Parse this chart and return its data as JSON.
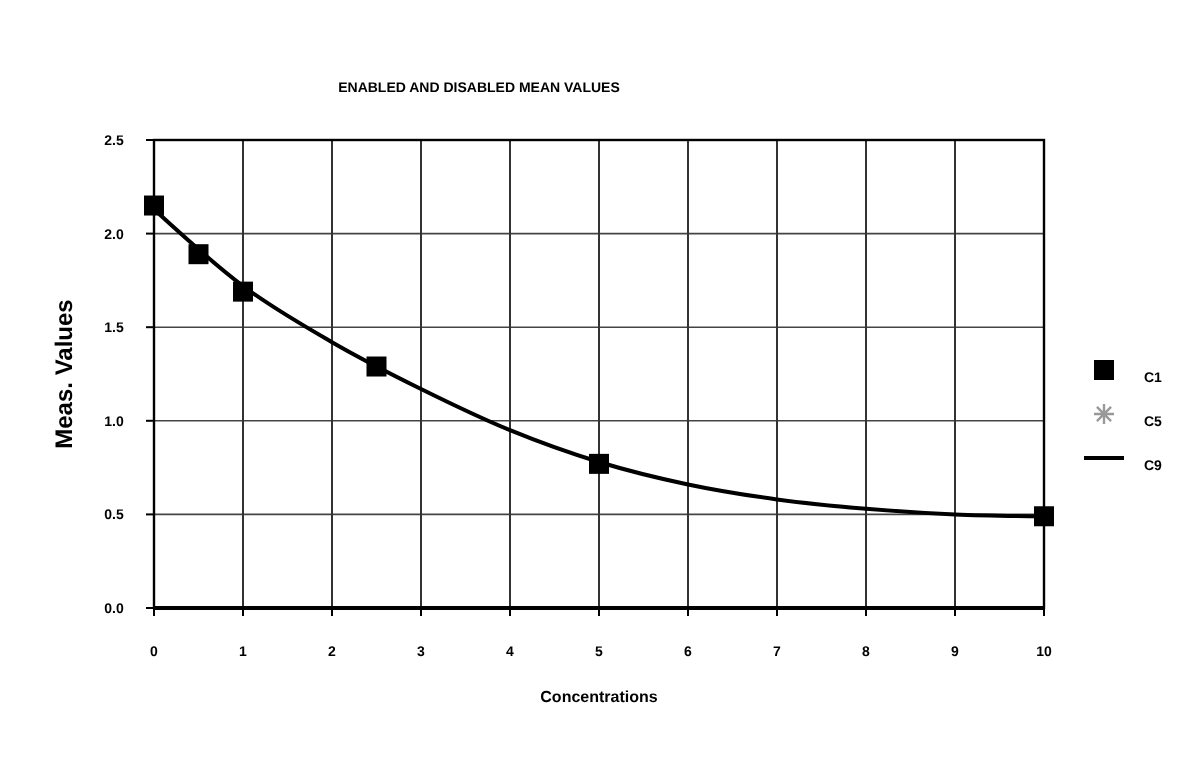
{
  "chart_data": {
    "type": "scatter",
    "title": "ENABLED AND DISABLED MEAN VALUES",
    "xlabel": "Concentrations",
    "ylabel": "Meas. Values",
    "xlim": [
      0,
      10
    ],
    "xticks": [
      0,
      1,
      2,
      3,
      4,
      5,
      6,
      7,
      8,
      9,
      10
    ],
    "ylim": [
      0,
      2.5
    ],
    "yticks": [
      {
        "value": 0,
        "label": "0.0"
      },
      {
        "value": 0.5,
        "label": "0.5"
      },
      {
        "value": 1,
        "label": "1.0"
      },
      {
        "value": 1.5,
        "label": "1.5"
      },
      {
        "value": 2,
        "label": "2.0"
      },
      {
        "value": 2.5,
        "label": "2.5"
      }
    ],
    "grid": true,
    "legend": "right",
    "series": [
      {
        "name": "C1",
        "marker": "square",
        "color": "#000000",
        "x": [
          0,
          0.5,
          1,
          2.5,
          5,
          10
        ],
        "values": [
          2.15,
          1.89,
          1.69,
          1.29,
          0.77,
          0.49
        ]
      },
      {
        "name": "C5",
        "marker": "star",
        "color": "#999999"
      },
      {
        "name": "C9",
        "type": "line",
        "marker": "none",
        "line_style": "solid",
        "color": "#000000",
        "x": [
          0,
          1,
          2,
          3,
          4,
          5,
          6,
          7,
          8,
          9,
          10
        ],
        "values": [
          2.13,
          1.72,
          1.42,
          1.17,
          0.95,
          0.78,
          0.66,
          0.58,
          0.53,
          0.5,
          0.49
        ]
      }
    ]
  }
}
